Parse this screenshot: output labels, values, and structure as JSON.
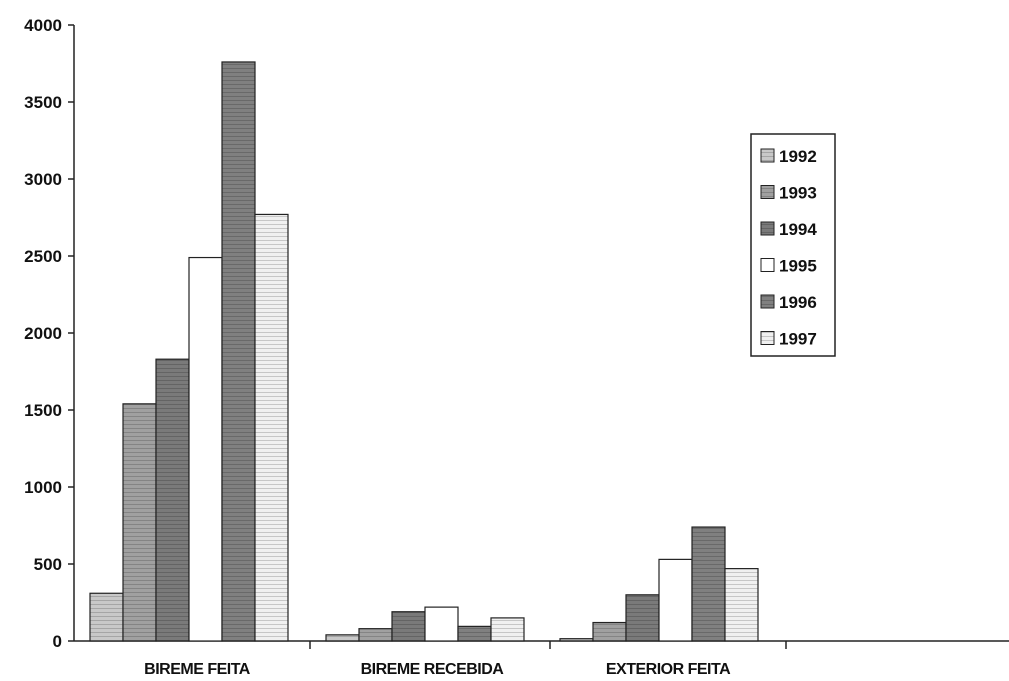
{
  "chart_data": {
    "type": "bar",
    "title": "",
    "xlabel": "",
    "ylabel": "",
    "ylim": [
      0,
      4000
    ],
    "yticks": [
      0,
      500,
      1000,
      1500,
      2000,
      2500,
      3000,
      3500,
      4000
    ],
    "categories": [
      "BIREME FEITA",
      "BIREME RECEBIDA",
      "EXTERIOR FEITA",
      ""
    ],
    "series": [
      {
        "name": "1992",
        "values": [
          310,
          40,
          15,
          0
        ]
      },
      {
        "name": "1993",
        "values": [
          1540,
          80,
          120,
          0
        ]
      },
      {
        "name": "1994",
        "values": [
          1830,
          190,
          300,
          0
        ]
      },
      {
        "name": "1995",
        "values": [
          2490,
          220,
          530,
          0
        ]
      },
      {
        "name": "1996",
        "values": [
          3760,
          95,
          740,
          0
        ]
      },
      {
        "name": "1997",
        "values": [
          2770,
          150,
          470,
          0
        ]
      }
    ],
    "legend": {
      "placement": "right"
    },
    "grid": false
  },
  "styles": {
    "series_colors": [
      "#c8c8c8",
      "#a0a0a0",
      "#7a7a7a",
      "#ffffff",
      "#808080",
      "#f0f0f0"
    ],
    "series_patterns": [
      "hlines",
      "hlines",
      "hlines",
      "none",
      "hlines",
      "hlines"
    ],
    "axis_color": "#222222"
  }
}
